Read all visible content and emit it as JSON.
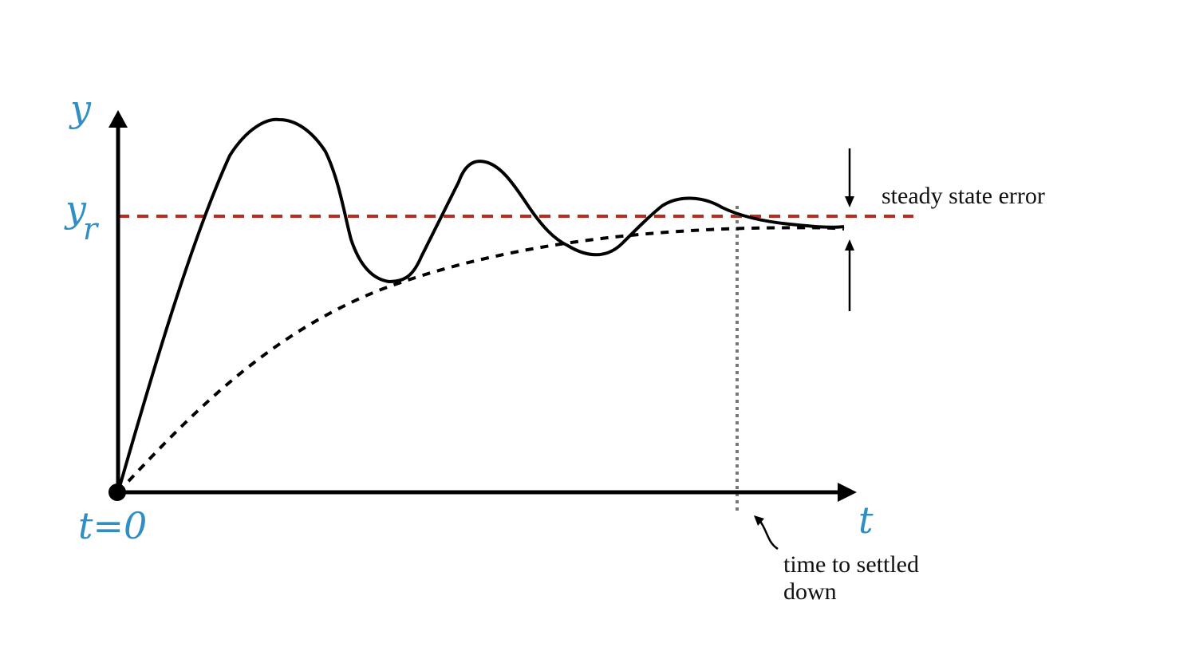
{
  "labels": {
    "y_axis": "y",
    "reference_main": "y",
    "reference_sub": "r",
    "origin": "t=0",
    "x_axis": "t",
    "steady_state_error": "steady state error",
    "settle_line1": "time to settled",
    "settle_line2": "down"
  },
  "colors": {
    "axis": "#000000",
    "label_blue": "#2f8fc4",
    "reference_line": "#c0281e",
    "settle_marker": "#777777"
  },
  "curves": {
    "oscillating_response": "solid black line, overshoot and damped oscillation around the reference",
    "slow_response": "dashed black line, monotonic rise approaching below the reference"
  }
}
